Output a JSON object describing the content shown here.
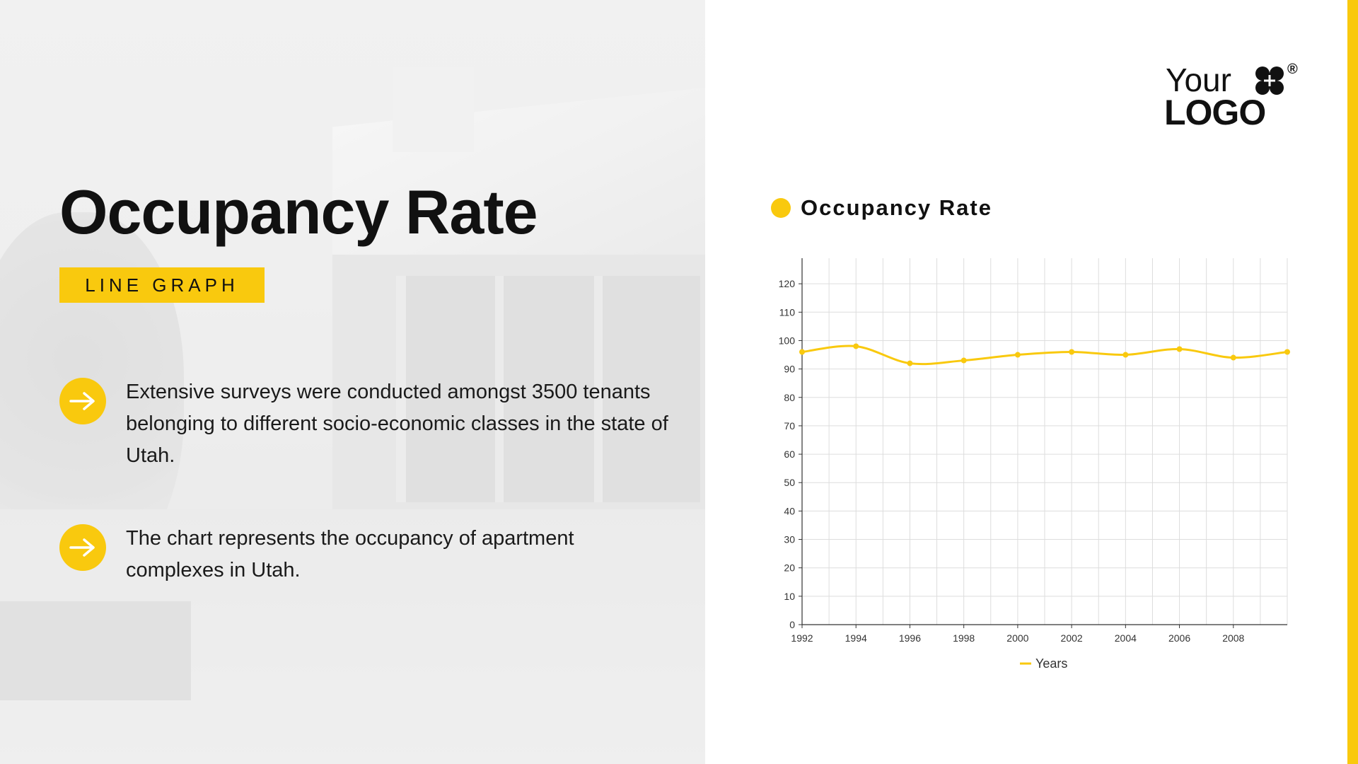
{
  "slide": {
    "title": "Occupancy Rate",
    "badge": "LINE GRAPH",
    "bullets": [
      {
        "icon": "arrow-right-icon",
        "text": "Extensive surveys were conducted amongst 3500 tenants belonging to different socio-economic classes in the state of Utah."
      },
      {
        "icon": "arrow-right-icon",
        "text": "The chart represents the occupancy of apartment complexes in Utah."
      }
    ]
  },
  "logo": {
    "line1": "Your",
    "line2": "LOGO",
    "registered": "®"
  },
  "colors": {
    "accent": "#f9c90e",
    "text": "#111111",
    "grid": "#dddddd"
  },
  "chart_data": {
    "type": "line",
    "title": "Occupancy Rate",
    "x": [
      1992,
      1994,
      1996,
      1998,
      2000,
      2002,
      2004,
      2006,
      2008,
      2010
    ],
    "x_tick_labels": [
      "1992",
      "1994",
      "1996",
      "1998",
      "2000",
      "2002",
      "2004",
      "2006",
      "2008"
    ],
    "y_ticks": [
      0,
      10,
      20,
      30,
      40,
      50,
      60,
      70,
      80,
      90,
      100,
      110,
      120
    ],
    "ylim": [
      0,
      129
    ],
    "series": [
      {
        "name": "Years",
        "values": [
          96,
          98,
          92,
          93,
          95,
          96,
          95,
          97,
          94,
          96
        ],
        "color": "#f9c90e"
      }
    ],
    "grid": true,
    "legend_position": "bottom-center"
  }
}
